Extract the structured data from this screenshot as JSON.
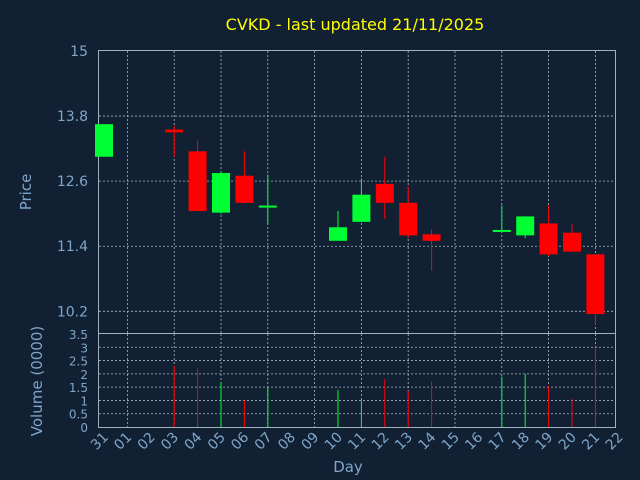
{
  "chart_data": {
    "type": "candlestick",
    "title": "CVKD - last updated 21/11/2025",
    "xlabel": "Day",
    "price_panel": {
      "ylabel": "Price",
      "ylim": [
        9.8,
        15
      ],
      "yticks": [
        "15",
        "13.8",
        "12.6",
        "11.4",
        "10.2"
      ],
      "ytick_values": [
        15,
        13.8,
        12.6,
        11.4,
        10.2
      ],
      "grid": true
    },
    "volume_panel": {
      "ylabel": "Volume (0000)",
      "ylim": [
        0,
        3.5
      ],
      "yticks": [
        "3.5",
        "3",
        "2.5",
        "2",
        "1.5",
        "1",
        "0.5",
        "0"
      ],
      "ytick_values": [
        3.5,
        3,
        2.5,
        2,
        1.5,
        1,
        0.5,
        0
      ],
      "grid": true
    },
    "x_tick_labels": [
      "31",
      "01",
      "02",
      "03",
      "04",
      "05",
      "06",
      "07",
      "08",
      "09",
      "10",
      "11",
      "12",
      "13",
      "14",
      "15",
      "16",
      "17",
      "18",
      "19",
      "20",
      "21",
      "22"
    ],
    "colors": {
      "up": "#00ff33",
      "down": "#ff0000",
      "title": "#ffff00",
      "text": "#7fa6c9",
      "background": "#112033"
    },
    "candles": [
      {
        "day": "31",
        "open": 13.05,
        "close": 13.65,
        "high": 13.65,
        "low": 13.05,
        "volume": 0
      },
      {
        "day": "03",
        "open": 13.55,
        "close": 13.5,
        "high": 13.62,
        "low": 13.05,
        "volume": 2.3
      },
      {
        "day": "04",
        "open": 13.15,
        "close": 12.05,
        "high": 13.35,
        "low": 12.05,
        "volume": 2.2
      },
      {
        "day": "05",
        "open": 12.02,
        "close": 12.75,
        "high": 12.78,
        "low": 12.0,
        "volume": 1.7
      },
      {
        "day": "06",
        "open": 12.7,
        "close": 12.2,
        "high": 13.15,
        "low": 12.2,
        "volume": 1.0
      },
      {
        "day": "07",
        "open": 12.15,
        "close": 12.15,
        "high": 12.72,
        "low": 11.8,
        "volume": 1.5
      },
      {
        "day": "10",
        "open": 11.5,
        "close": 11.75,
        "high": 12.05,
        "low": 11.5,
        "volume": 1.4
      },
      {
        "day": "11",
        "open": 11.85,
        "close": 12.35,
        "high": 12.65,
        "low": 11.85,
        "volume": 1.0
      },
      {
        "day": "12",
        "open": 12.55,
        "close": 12.2,
        "high": 13.05,
        "low": 11.9,
        "volume": 1.8
      },
      {
        "day": "13",
        "open": 12.2,
        "close": 11.6,
        "high": 12.5,
        "low": 11.55,
        "volume": 1.35
      },
      {
        "day": "14",
        "open": 11.62,
        "close": 11.5,
        "high": 11.72,
        "low": 10.95,
        "volume": 1.7
      },
      {
        "day": "17",
        "open": 11.7,
        "close": 11.7,
        "high": 12.15,
        "low": 11.65,
        "volume": 1.9
      },
      {
        "day": "18",
        "open": 11.6,
        "close": 11.95,
        "high": 11.95,
        "low": 11.55,
        "volume": 2.0
      },
      {
        "day": "19",
        "open": 11.82,
        "close": 11.25,
        "high": 12.15,
        "low": 11.22,
        "volume": 1.55
      },
      {
        "day": "20",
        "open": 11.65,
        "close": 11.3,
        "high": 11.82,
        "low": 11.3,
        "volume": 1.05
      },
      {
        "day": "21",
        "open": 11.25,
        "close": 10.15,
        "high": 11.25,
        "low": 9.95,
        "volume": 3.0
      }
    ]
  }
}
